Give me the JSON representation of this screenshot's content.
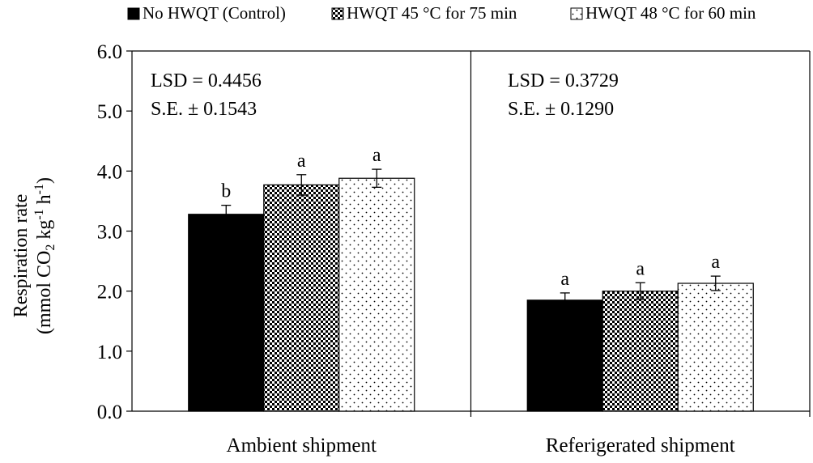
{
  "chart_data": {
    "type": "bar",
    "categories": [
      "Ambient shipment",
      "Referigerated shipment"
    ],
    "series": [
      {
        "name": "No HWQT (Control)",
        "values": [
          3.28,
          1.85
        ],
        "errors": [
          0.15,
          0.12
        ],
        "letters": [
          "b",
          "a"
        ],
        "pattern": "solid"
      },
      {
        "name": "HWQT 45 °C for 75 min",
        "values": [
          3.77,
          2.0
        ],
        "errors": [
          0.17,
          0.14
        ],
        "letters": [
          "a",
          "a"
        ],
        "pattern": "checker"
      },
      {
        "name": "HWQT 48 °C for 60 min",
        "values": [
          3.88,
          2.13
        ],
        "errors": [
          0.15,
          0.12
        ],
        "letters": [
          "a",
          "a"
        ],
        "pattern": "dots"
      }
    ],
    "ylabel_line1": "Respiration rate",
    "ylabel_line2": {
      "open": "(mmol CO",
      "sub": "2",
      "mid": " kg",
      "sup1": "-1",
      "mid2": " h",
      "sup2": "-1",
      "close": ")"
    },
    "ylim": [
      0,
      6
    ],
    "yticks": [
      "0.0",
      "1.0",
      "2.0",
      "3.0",
      "4.0",
      "5.0",
      "6.0"
    ],
    "legend_position": "top",
    "annotations": [
      {
        "lsd": "LSD = 0.4456",
        "se": "S.E. ± 0.1543"
      },
      {
        "lsd": "LSD = 0.3729",
        "se": "S.E. ± 0.1290"
      }
    ],
    "grid": false
  }
}
